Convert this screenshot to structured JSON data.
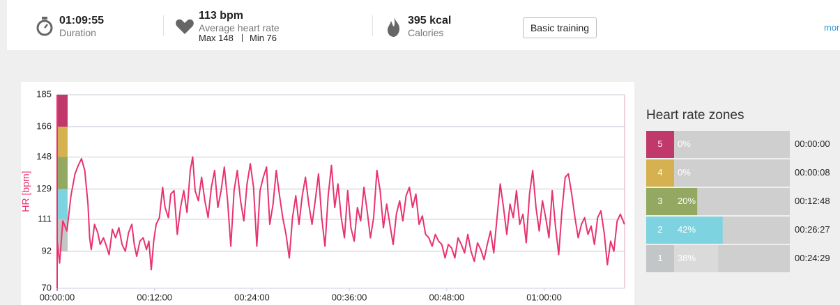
{
  "header": {
    "duration": {
      "value": "01:09:55",
      "label": "Duration"
    },
    "heart_rate": {
      "value": "113 bpm",
      "label": "Average heart rate",
      "max": "Max 148",
      "min": "Min 76"
    },
    "calories": {
      "value": "395 kcal",
      "label": "Calories"
    },
    "button": "Basic training",
    "more": "more"
  },
  "chart_data": {
    "type": "line",
    "ylabel": "HR [bpm]",
    "color": "#e8336e",
    "xlim": [
      0,
      69.92
    ],
    "ylim": [
      70,
      185
    ],
    "yticks": [
      70,
      92,
      111,
      129,
      148,
      166,
      185
    ],
    "xticks": [
      {
        "value": 0,
        "label": "00:00:00"
      },
      {
        "value": 12,
        "label": "00:12:00"
      },
      {
        "value": 24,
        "label": "00:24:00"
      },
      {
        "value": 36,
        "label": "00:36:00"
      },
      {
        "value": 48,
        "label": "00:48:00"
      },
      {
        "value": 60,
        "label": "01:00:00"
      }
    ],
    "grid": true,
    "x": [
      0,
      0.3,
      0.7,
      1.2,
      1.7,
      2.2,
      2.6,
      3.0,
      3.4,
      3.8,
      4.0,
      4.2,
      4.6,
      5.0,
      5.3,
      5.7,
      6.0,
      6.4,
      6.8,
      7.2,
      7.6,
      8.0,
      8.4,
      8.8,
      9.2,
      9.5,
      9.8,
      10.2,
      10.6,
      11.0,
      11.3,
      11.6,
      11.9,
      12.2,
      12.6,
      13.0,
      13.3,
      13.7,
      14.0,
      14.4,
      14.8,
      15.2,
      15.6,
      16.0,
      16.4,
      16.7,
      17.0,
      17.4,
      17.8,
      18.2,
      18.6,
      19.0,
      19.4,
      19.8,
      20.2,
      20.6,
      21.0,
      21.4,
      21.8,
      22.2,
      22.6,
      23.0,
      23.4,
      23.8,
      24.2,
      24.6,
      25.0,
      25.4,
      25.8,
      26.2,
      26.6,
      27.0,
      27.4,
      27.8,
      28.2,
      28.6,
      29.0,
      29.4,
      29.8,
      30.2,
      30.6,
      31.0,
      31.4,
      31.8,
      32.2,
      32.6,
      33.0,
      33.4,
      33.8,
      34.2,
      34.6,
      35.0,
      35.4,
      35.8,
      36.2,
      36.6,
      37.0,
      37.4,
      37.8,
      38.2,
      38.6,
      39.0,
      39.4,
      39.8,
      40.2,
      40.6,
      41.0,
      41.4,
      41.8,
      42.2,
      42.6,
      43.0,
      43.4,
      43.8,
      44.2,
      44.6,
      45.0,
      45.4,
      45.8,
      46.2,
      46.6,
      47.0,
      47.4,
      47.8,
      48.2,
      48.6,
      49.0,
      49.4,
      49.8,
      50.2,
      50.6,
      51.0,
      51.4,
      51.8,
      52.2,
      52.6,
      53.0,
      53.4,
      53.8,
      54.2,
      54.6,
      55.0,
      55.4,
      55.8,
      56.2,
      56.6,
      57.0,
      57.4,
      57.8,
      58.2,
      58.6,
      59.0,
      59.4,
      59.8,
      60.2,
      60.6,
      61.0,
      61.4,
      61.8,
      62.2,
      62.6,
      63.0,
      63.4,
      63.8,
      64.2,
      64.6,
      65.0,
      65.4,
      65.8,
      66.2,
      66.6,
      67.0,
      67.4,
      67.8,
      68.2,
      68.6,
      69.0,
      69.4,
      69.9
    ],
    "values": [
      98,
      85,
      110,
      104,
      125,
      138,
      143,
      147,
      140,
      120,
      100,
      93,
      108,
      103,
      96,
      100,
      96,
      90,
      105,
      100,
      106,
      96,
      92,
      103,
      108,
      96,
      89,
      98,
      100,
      93,
      98,
      81,
      98,
      108,
      112,
      130,
      118,
      112,
      126,
      128,
      102,
      118,
      128,
      115,
      140,
      148,
      128,
      122,
      136,
      122,
      112,
      130,
      140,
      118,
      128,
      142,
      122,
      95,
      128,
      140,
      122,
      110,
      132,
      144,
      130,
      95,
      128,
      136,
      142,
      108,
      120,
      140,
      125,
      112,
      102,
      88,
      112,
      125,
      108,
      125,
      136,
      120,
      108,
      122,
      138,
      112,
      95,
      125,
      143,
      118,
      132,
      112,
      100,
      128,
      106,
      98,
      118,
      110,
      130,
      116,
      100,
      112,
      140,
      128,
      106,
      120,
      108,
      96,
      114,
      122,
      110,
      125,
      130,
      118,
      126,
      108,
      113,
      102,
      100,
      95,
      102,
      98,
      96,
      88,
      96,
      94,
      88,
      100,
      96,
      91,
      102,
      92,
      86,
      97,
      93,
      87,
      96,
      104,
      91,
      112,
      132,
      118,
      102,
      120,
      112,
      128,
      108,
      114,
      97,
      126,
      140,
      118,
      104,
      122,
      112,
      100,
      128,
      107,
      90,
      116,
      136,
      138,
      126,
      112,
      100,
      108,
      112,
      102,
      107,
      96,
      112,
      116,
      103,
      84,
      98,
      92,
      110,
      114,
      108
    ]
  },
  "zones": {
    "title": "Heart rate zones",
    "names": [
      "5",
      "4",
      "3",
      "2",
      "1"
    ],
    "values": [
      0,
      0,
      20,
      42,
      38
    ],
    "value_labels": [
      "0%",
      "0%",
      "20%",
      "42%",
      "38%"
    ],
    "durations": [
      "00:00:00",
      "00:00:08",
      "00:12:48",
      "00:26:27",
      "00:24:29"
    ],
    "colors": [
      "#c0396a",
      "#d6b14f",
      "#93a860",
      "#7dd3e0",
      "#c3c6c6"
    ]
  }
}
